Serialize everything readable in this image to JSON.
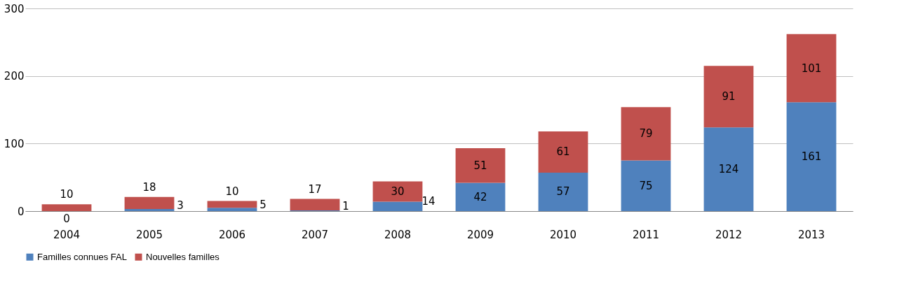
{
  "chart_data": {
    "type": "bar",
    "stacked": true,
    "categories": [
      "2004",
      "2005",
      "2006",
      "2007",
      "2008",
      "2009",
      "2010",
      "2011",
      "2012",
      "2013"
    ],
    "series": [
      {
        "name": "Familles connues FAL",
        "color": "#4f81bd",
        "values": [
          0,
          3,
          5,
          1,
          14,
          42,
          57,
          75,
          124,
          161
        ]
      },
      {
        "name": "Nouvelles familles",
        "color": "#c0504d",
        "values": [
          10,
          18,
          10,
          17,
          30,
          51,
          61,
          79,
          91,
          101
        ]
      }
    ],
    "ylim": [
      0,
      300
    ],
    "yticks": [
      0,
      100,
      200,
      300
    ],
    "grid": "y",
    "legend": "bottom",
    "data_labels": true
  }
}
